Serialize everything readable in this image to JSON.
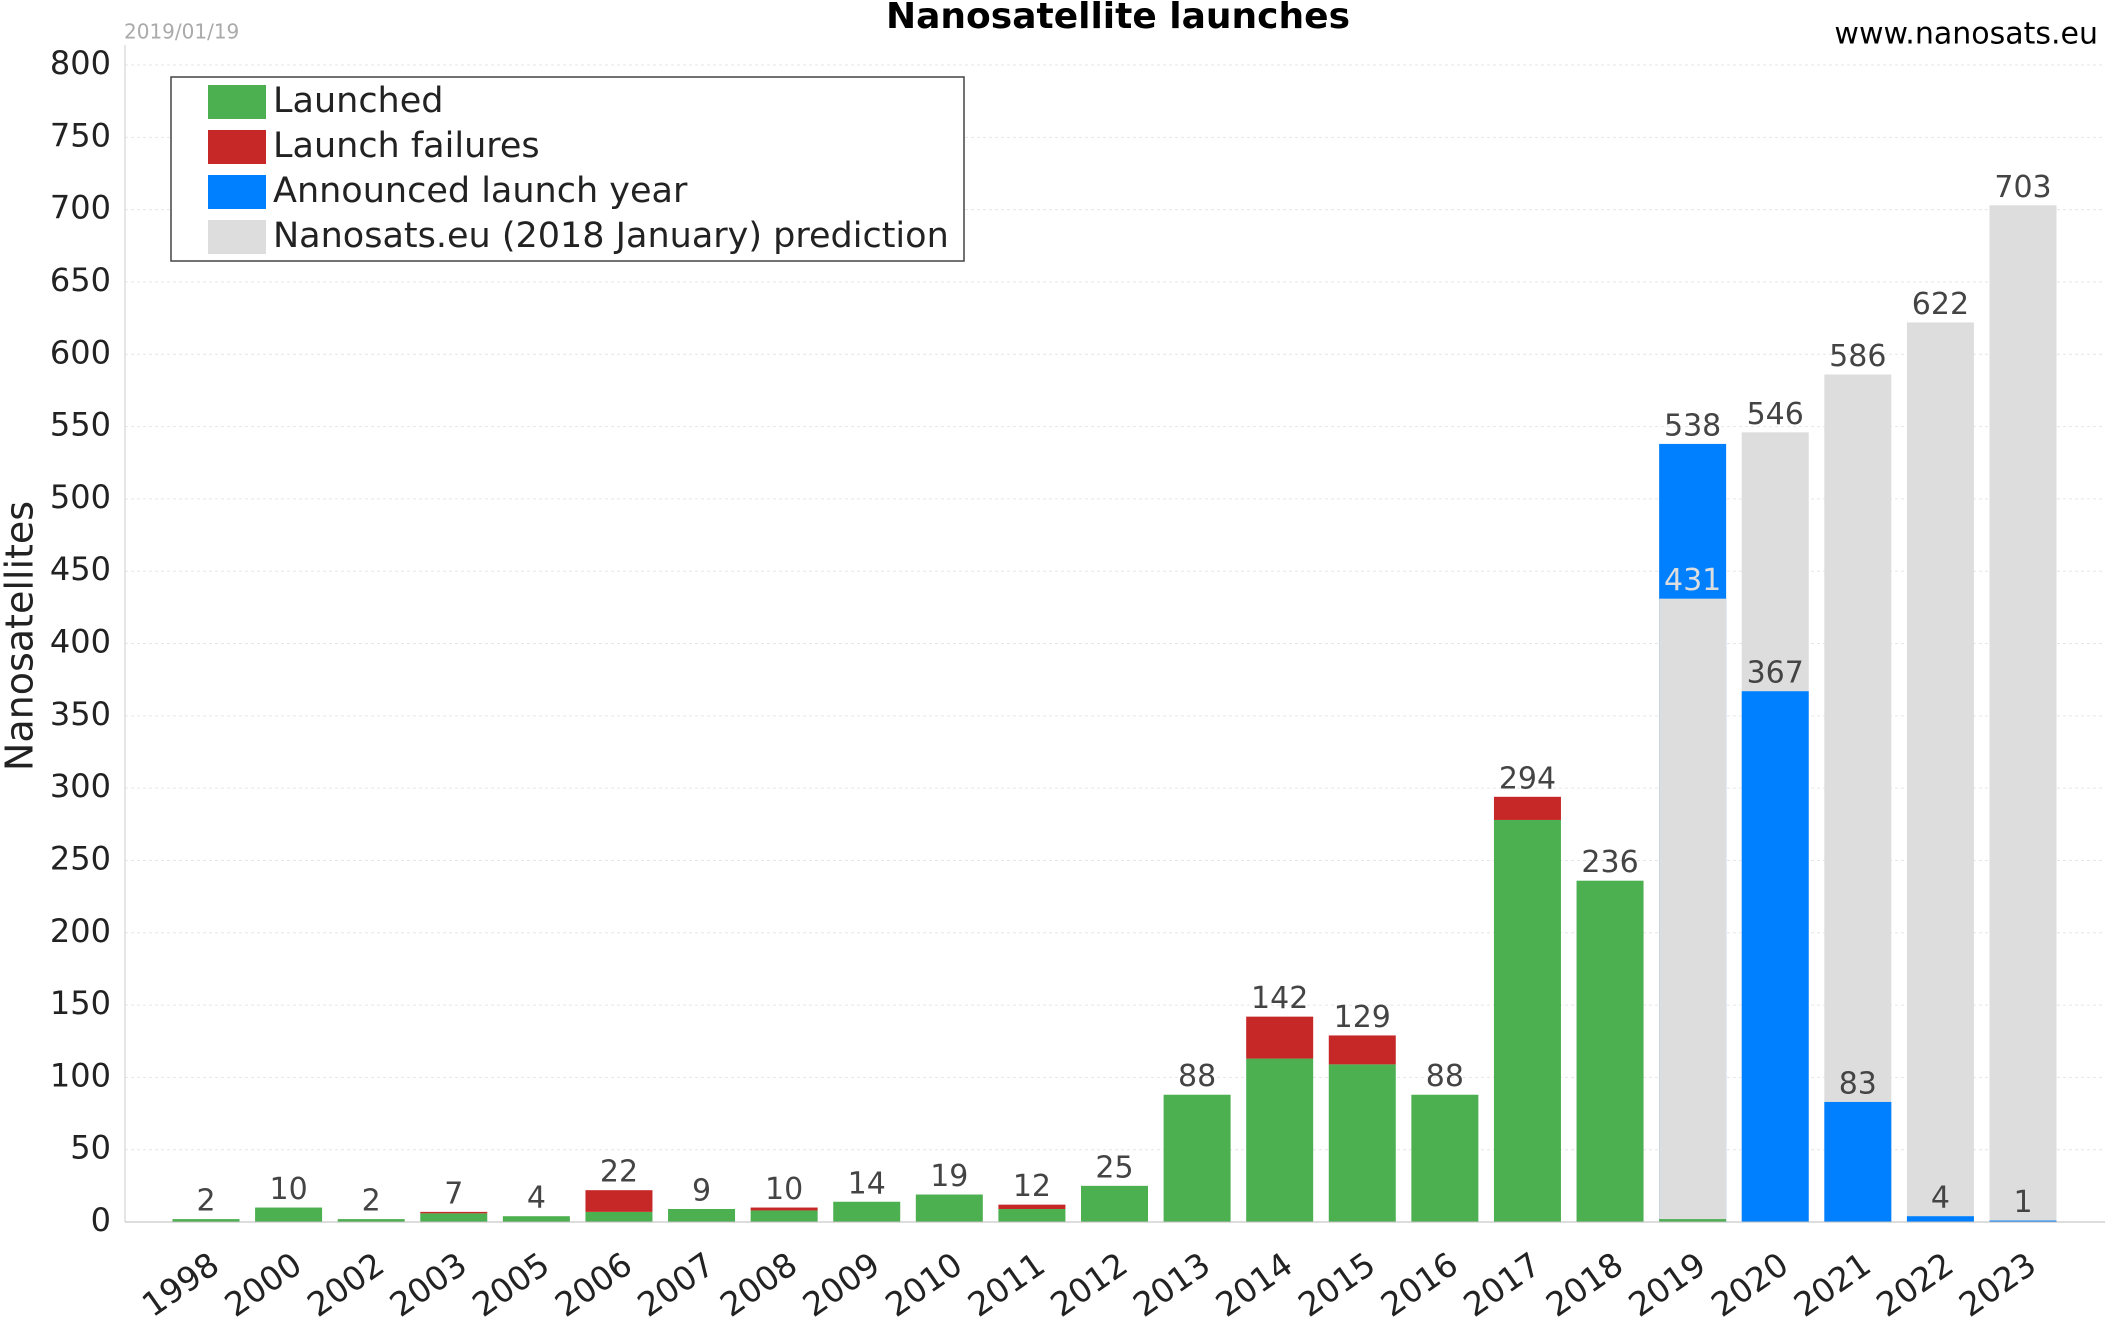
{
  "chart_data": {
    "type": "bar",
    "title": "Nanosatellite launches",
    "subtitle": "2019/01/19",
    "source": "www.nanosats.eu",
    "ylabel": "Nanosatellites",
    "categories": [
      "1998",
      "2000",
      "2002",
      "2003",
      "2005",
      "2006",
      "2007",
      "2008",
      "2009",
      "2010",
      "2011",
      "2012",
      "2013",
      "2014",
      "2015",
      "2016",
      "2017",
      "2018",
      "2019",
      "2020",
      "2021",
      "2022",
      "2023"
    ],
    "series": [
      {
        "name": "Launched",
        "color": "#4caf50",
        "values": [
          2,
          10,
          2,
          6,
          4,
          7,
          9,
          8,
          14,
          19,
          9,
          25,
          88,
          113,
          109,
          88,
          278,
          236,
          2,
          null,
          null,
          null,
          null
        ]
      },
      {
        "name": "Launch failures",
        "color": "#c62828",
        "values": [
          null,
          null,
          null,
          1,
          null,
          15,
          null,
          2,
          null,
          null,
          3,
          null,
          null,
          29,
          20,
          null,
          16,
          null,
          null,
          null,
          null,
          null,
          null
        ]
      },
      {
        "name": "Announced launch year",
        "color": "#0080ff",
        "values": [
          null,
          null,
          null,
          null,
          null,
          null,
          null,
          null,
          null,
          null,
          null,
          null,
          null,
          null,
          null,
          null,
          null,
          null,
          538,
          367,
          83,
          4,
          1
        ]
      },
      {
        "name": "Nanosats.eu (2018 January) prediction",
        "color": "#dddddd",
        "values": [
          null,
          null,
          null,
          null,
          null,
          null,
          null,
          null,
          null,
          null,
          null,
          null,
          null,
          null,
          null,
          null,
          null,
          null,
          431,
          546,
          586,
          622,
          703
        ]
      }
    ],
    "totals": [
      2,
      10,
      2,
      7,
      4,
      22,
      9,
      10,
      14,
      19,
      12,
      25,
      88,
      142,
      129,
      88,
      294,
      236,
      null,
      null,
      null,
      null,
      null
    ],
    "ylim": [
      0,
      800
    ],
    "yticks": [
      0,
      50,
      100,
      150,
      200,
      250,
      300,
      350,
      400,
      450,
      500,
      550,
      600,
      650,
      700,
      750,
      800
    ],
    "grid": true,
    "legend": "upper left"
  }
}
